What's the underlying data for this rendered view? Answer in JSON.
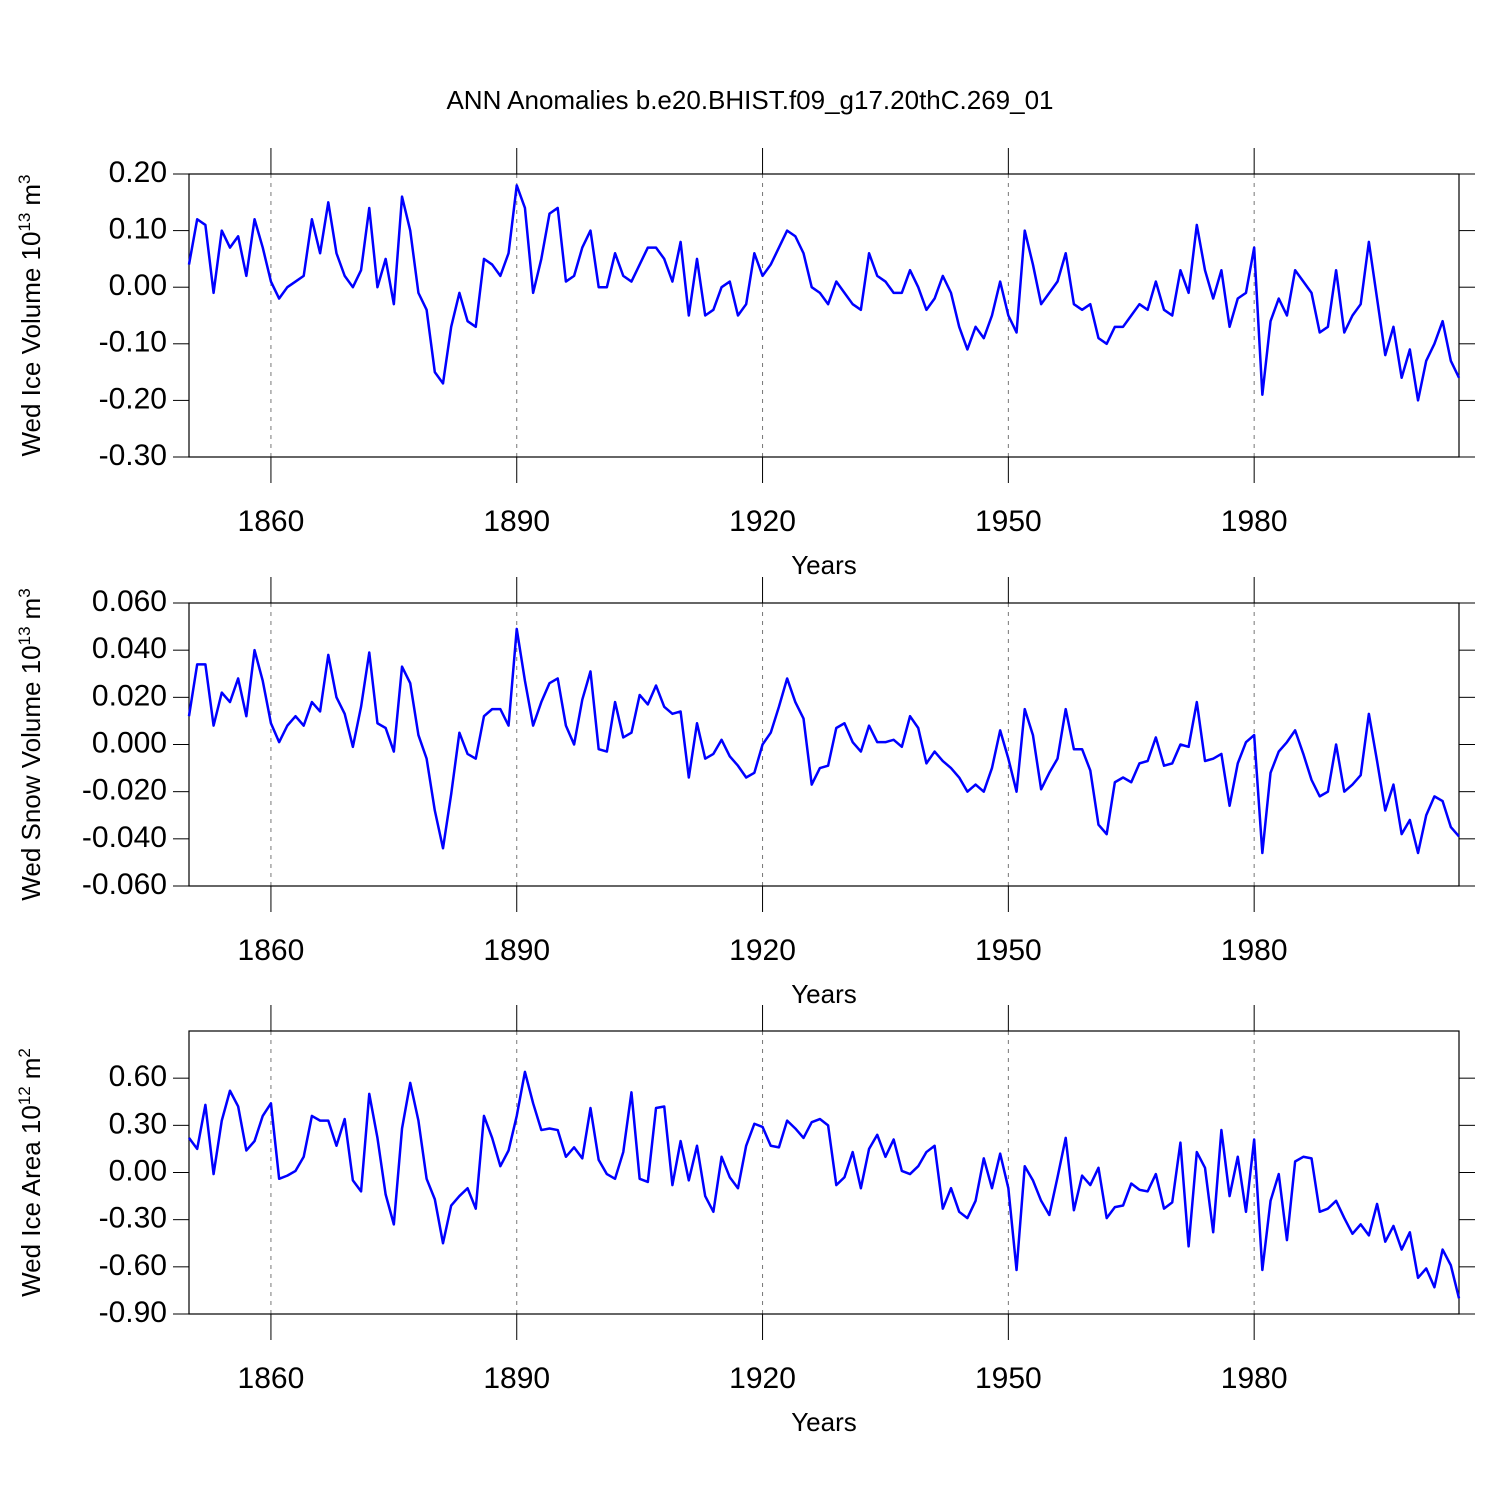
{
  "title": "ANN Anomalies b.e20.BHIST.f09_g17.20thC.269_01",
  "chart_data": [
    {
      "type": "line",
      "xlabel": "Years",
      "ylabel": {
        "text": "Wed Ice Volume 10",
        "exponent": "13",
        "unit": "m",
        "unit_exponent": "3"
      },
      "xlim": [
        1850,
        2005
      ],
      "xticks": [
        1860,
        1890,
        1920,
        1950,
        1980
      ],
      "grid": true,
      "color": "#0000ff",
      "ylim": [
        -0.3,
        0.2
      ],
      "yticks": [
        {
          "value": -0.3,
          "label": "-0.30"
        },
        {
          "value": -0.2,
          "label": "-0.20"
        },
        {
          "value": -0.1,
          "label": "-0.10"
        },
        {
          "value": 0,
          "label": "0.00"
        },
        {
          "value": 0.1,
          "label": "0.10"
        },
        {
          "value": 0.2,
          "label": "0.20"
        }
      ],
      "x": [
        1850,
        1851,
        1852,
        1853,
        1854,
        1855,
        1856,
        1857,
        1858,
        1859,
        1860,
        1861,
        1862,
        1863,
        1864,
        1865,
        1866,
        1867,
        1868,
        1869,
        1870,
        1871,
        1872,
        1873,
        1874,
        1875,
        1876,
        1877,
        1878,
        1879,
        1880,
        1881,
        1882,
        1883,
        1884,
        1885,
        1886,
        1887,
        1888,
        1889,
        1890,
        1891,
        1892,
        1893,
        1894,
        1895,
        1896,
        1897,
        1898,
        1899,
        1900,
        1901,
        1902,
        1903,
        1904,
        1905,
        1906,
        1907,
        1908,
        1909,
        1910,
        1911,
        1912,
        1913,
        1914,
        1915,
        1916,
        1917,
        1918,
        1919,
        1920,
        1921,
        1922,
        1923,
        1924,
        1925,
        1926,
        1927,
        1928,
        1929,
        1930,
        1931,
        1932,
        1933,
        1934,
        1935,
        1936,
        1937,
        1938,
        1939,
        1940,
        1941,
        1942,
        1943,
        1944,
        1945,
        1946,
        1947,
        1948,
        1949,
        1950,
        1951,
        1952,
        1953,
        1954,
        1955,
        1956,
        1957,
        1958,
        1959,
        1960,
        1961,
        1962,
        1963,
        1964,
        1965,
        1966,
        1967,
        1968,
        1969,
        1970,
        1971,
        1972,
        1973,
        1974,
        1975,
        1976,
        1977,
        1978,
        1979,
        1980,
        1981,
        1982,
        1983,
        1984,
        1985,
        1986,
        1987,
        1988,
        1989,
        1990,
        1991,
        1992,
        1993,
        1994,
        1995,
        1996,
        1997,
        1998,
        1999,
        2000,
        2001,
        2002,
        2003,
        2004,
        2005
      ],
      "values": [
        0.04,
        0.12,
        0.11,
        -0.01,
        0.1,
        0.07,
        0.09,
        0.02,
        0.12,
        0.07,
        0.01,
        -0.02,
        0.0,
        0.01,
        0.02,
        0.12,
        0.06,
        0.15,
        0.06,
        0.02,
        0.0,
        0.03,
        0.14,
        0.0,
        0.05,
        -0.03,
        0.16,
        0.1,
        -0.01,
        -0.04,
        -0.15,
        -0.17,
        -0.07,
        -0.01,
        -0.06,
        -0.07,
        0.05,
        0.04,
        0.02,
        0.06,
        0.18,
        0.14,
        -0.01,
        0.05,
        0.13,
        0.14,
        0.01,
        0.02,
        0.07,
        0.1,
        0.0,
        0.0,
        0.06,
        0.02,
        0.01,
        0.04,
        0.07,
        0.07,
        0.05,
        0.01,
        0.08,
        -0.05,
        0.05,
        -0.05,
        -0.04,
        0.0,
        0.01,
        -0.05,
        -0.03,
        0.06,
        0.02,
        0.04,
        0.07,
        0.1,
        0.09,
        0.06,
        0.0,
        -0.01,
        -0.03,
        0.01,
        -0.01,
        -0.03,
        -0.04,
        0.06,
        0.02,
        0.01,
        -0.01,
        -0.01,
        0.03,
        0.0,
        -0.04,
        -0.02,
        0.02,
        -0.01,
        -0.07,
        -0.11,
        -0.07,
        -0.09,
        -0.05,
        0.01,
        -0.05,
        -0.08,
        0.1,
        0.04,
        -0.03,
        -0.01,
        0.01,
        0.06,
        -0.03,
        -0.04,
        -0.03,
        -0.09,
        -0.1,
        -0.07,
        -0.07,
        -0.05,
        -0.03,
        -0.04,
        0.01,
        -0.04,
        -0.05,
        0.03,
        -0.01,
        0.11,
        0.03,
        -0.02,
        0.03,
        -0.07,
        -0.02,
        -0.01,
        0.07,
        -0.19,
        -0.06,
        -0.02,
        -0.05,
        0.03,
        0.01,
        -0.01,
        -0.08,
        -0.07,
        0.03,
        -0.08,
        -0.05,
        -0.03,
        0.08,
        -0.02,
        -0.12,
        -0.07,
        -0.16,
        -0.11,
        -0.2,
        -0.13,
        -0.1,
        -0.06,
        -0.13,
        -0.16
      ]
    },
    {
      "type": "line",
      "xlabel": "Years",
      "ylabel": {
        "text": "Wed Snow Volume 10",
        "exponent": "13",
        "unit": "m",
        "unit_exponent": "3"
      },
      "xlim": [
        1850,
        2005
      ],
      "xticks": [
        1860,
        1890,
        1920,
        1950,
        1980
      ],
      "grid": true,
      "color": "#0000ff",
      "ylim": [
        -0.06,
        0.06
      ],
      "yticks": [
        {
          "value": -0.06,
          "label": "-0.060"
        },
        {
          "value": -0.04,
          "label": "-0.040"
        },
        {
          "value": -0.02,
          "label": "-0.020"
        },
        {
          "value": 0,
          "label": "0.000"
        },
        {
          "value": 0.02,
          "label": "0.020"
        },
        {
          "value": 0.04,
          "label": "0.040"
        },
        {
          "value": 0.06,
          "label": "0.060"
        }
      ],
      "x": [
        1850,
        1851,
        1852,
        1853,
        1854,
        1855,
        1856,
        1857,
        1858,
        1859,
        1860,
        1861,
        1862,
        1863,
        1864,
        1865,
        1866,
        1867,
        1868,
        1869,
        1870,
        1871,
        1872,
        1873,
        1874,
        1875,
        1876,
        1877,
        1878,
        1879,
        1880,
        1881,
        1882,
        1883,
        1884,
        1885,
        1886,
        1887,
        1888,
        1889,
        1890,
        1891,
        1892,
        1893,
        1894,
        1895,
        1896,
        1897,
        1898,
        1899,
        1900,
        1901,
        1902,
        1903,
        1904,
        1905,
        1906,
        1907,
        1908,
        1909,
        1910,
        1911,
        1912,
        1913,
        1914,
        1915,
        1916,
        1917,
        1918,
        1919,
        1920,
        1921,
        1922,
        1923,
        1924,
        1925,
        1926,
        1927,
        1928,
        1929,
        1930,
        1931,
        1932,
        1933,
        1934,
        1935,
        1936,
        1937,
        1938,
        1939,
        1940,
        1941,
        1942,
        1943,
        1944,
        1945,
        1946,
        1947,
        1948,
        1949,
        1950,
        1951,
        1952,
        1953,
        1954,
        1955,
        1956,
        1957,
        1958,
        1959,
        1960,
        1961,
        1962,
        1963,
        1964,
        1965,
        1966,
        1967,
        1968,
        1969,
        1970,
        1971,
        1972,
        1973,
        1974,
        1975,
        1976,
        1977,
        1978,
        1979,
        1980,
        1981,
        1982,
        1983,
        1984,
        1985,
        1986,
        1987,
        1988,
        1989,
        1990,
        1991,
        1992,
        1993,
        1994,
        1995,
        1996,
        1997,
        1998,
        1999,
        2000,
        2001,
        2002,
        2003,
        2004,
        2005
      ],
      "values": [
        0.012,
        0.034,
        0.034,
        0.008,
        0.022,
        0.018,
        0.028,
        0.012,
        0.04,
        0.027,
        0.009,
        0.001,
        0.008,
        0.012,
        0.008,
        0.018,
        0.014,
        0.038,
        0.02,
        0.013,
        -0.001,
        0.016,
        0.039,
        0.009,
        0.007,
        -0.003,
        0.033,
        0.026,
        0.004,
        -0.006,
        -0.028,
        -0.044,
        -0.021,
        0.005,
        -0.004,
        -0.006,
        0.012,
        0.015,
        0.015,
        0.008,
        0.049,
        0.027,
        0.008,
        0.018,
        0.026,
        0.028,
        0.008,
        0.0,
        0.019,
        0.031,
        -0.002,
        -0.003,
        0.018,
        0.003,
        0.005,
        0.021,
        0.017,
        0.025,
        0.016,
        0.013,
        0.014,
        -0.014,
        0.009,
        -0.006,
        -0.004,
        0.002,
        -0.005,
        -0.009,
        -0.014,
        -0.012,
        0.0,
        0.005,
        0.016,
        0.028,
        0.018,
        0.011,
        -0.017,
        -0.01,
        -0.009,
        0.007,
        0.009,
        0.001,
        -0.003,
        0.008,
        0.001,
        0.001,
        0.002,
        -0.001,
        0.012,
        0.007,
        -0.008,
        -0.003,
        -0.007,
        -0.01,
        -0.014,
        -0.02,
        -0.017,
        -0.02,
        -0.01,
        0.006,
        -0.006,
        -0.02,
        0.015,
        0.004,
        -0.019,
        -0.012,
        -0.006,
        0.015,
        -0.002,
        -0.002,
        -0.011,
        -0.034,
        -0.038,
        -0.016,
        -0.014,
        -0.016,
        -0.008,
        -0.007,
        0.003,
        -0.009,
        -0.008,
        0.0,
        -0.001,
        0.018,
        -0.007,
        -0.006,
        -0.004,
        -0.026,
        -0.008,
        0.001,
        0.004,
        -0.046,
        -0.012,
        -0.003,
        0.001,
        0.006,
        -0.004,
        -0.015,
        -0.022,
        -0.02,
        0.0,
        -0.02,
        -0.017,
        -0.013,
        0.013,
        -0.007,
        -0.028,
        -0.017,
        -0.038,
        -0.032,
        -0.046,
        -0.03,
        -0.022,
        -0.024,
        -0.035,
        -0.039
      ]
    },
    {
      "type": "line",
      "xlabel": "Years",
      "ylabel": {
        "text": "Wed Ice Area 10",
        "exponent": "12",
        "unit": "m",
        "unit_exponent": "2"
      },
      "xlim": [
        1850,
        2005
      ],
      "xticks": [
        1860,
        1890,
        1920,
        1950,
        1980
      ],
      "grid": true,
      "color": "#0000ff",
      "ylim": [
        -0.9,
        0.9
      ],
      "yticks": [
        {
          "value": -0.9,
          "label": "-0.90"
        },
        {
          "value": -0.6,
          "label": "-0.60"
        },
        {
          "value": -0.3,
          "label": "-0.30"
        },
        {
          "value": 0,
          "label": "0.00"
        },
        {
          "value": 0.3,
          "label": "0.30"
        },
        {
          "value": 0.6,
          "label": "0.60"
        }
      ],
      "x": [
        1850,
        1851,
        1852,
        1853,
        1854,
        1855,
        1856,
        1857,
        1858,
        1859,
        1860,
        1861,
        1862,
        1863,
        1864,
        1865,
        1866,
        1867,
        1868,
        1869,
        1870,
        1871,
        1872,
        1873,
        1874,
        1875,
        1876,
        1877,
        1878,
        1879,
        1880,
        1881,
        1882,
        1883,
        1884,
        1885,
        1886,
        1887,
        1888,
        1889,
        1890,
        1891,
        1892,
        1893,
        1894,
        1895,
        1896,
        1897,
        1898,
        1899,
        1900,
        1901,
        1902,
        1903,
        1904,
        1905,
        1906,
        1907,
        1908,
        1909,
        1910,
        1911,
        1912,
        1913,
        1914,
        1915,
        1916,
        1917,
        1918,
        1919,
        1920,
        1921,
        1922,
        1923,
        1924,
        1925,
        1926,
        1927,
        1928,
        1929,
        1930,
        1931,
        1932,
        1933,
        1934,
        1935,
        1936,
        1937,
        1938,
        1939,
        1940,
        1941,
        1942,
        1943,
        1944,
        1945,
        1946,
        1947,
        1948,
        1949,
        1950,
        1951,
        1952,
        1953,
        1954,
        1955,
        1956,
        1957,
        1958,
        1959,
        1960,
        1961,
        1962,
        1963,
        1964,
        1965,
        1966,
        1967,
        1968,
        1969,
        1970,
        1971,
        1972,
        1973,
        1974,
        1975,
        1976,
        1977,
        1978,
        1979,
        1980,
        1981,
        1982,
        1983,
        1984,
        1985,
        1986,
        1987,
        1988,
        1989,
        1990,
        1991,
        1992,
        1993,
        1994,
        1995,
        1996,
        1997,
        1998,
        1999,
        2000,
        2001,
        2002,
        2003,
        2004,
        2005
      ],
      "values": [
        0.22,
        0.15,
        0.43,
        -0.01,
        0.33,
        0.52,
        0.42,
        0.14,
        0.2,
        0.36,
        0.44,
        -0.04,
        -0.02,
        0.01,
        0.1,
        0.36,
        0.33,
        0.33,
        0.17,
        0.34,
        -0.05,
        -0.12,
        0.5,
        0.22,
        -0.14,
        -0.33,
        0.28,
        0.57,
        0.33,
        -0.04,
        -0.17,
        -0.45,
        -0.21,
        -0.15,
        -0.1,
        -0.23,
        0.36,
        0.22,
        0.04,
        0.14,
        0.36,
        0.64,
        0.44,
        0.27,
        0.28,
        0.27,
        0.1,
        0.16,
        0.09,
        0.41,
        0.08,
        -0.01,
        -0.04,
        0.13,
        0.51,
        -0.04,
        -0.06,
        0.41,
        0.42,
        -0.08,
        0.2,
        -0.05,
        0.17,
        -0.15,
        -0.25,
        0.1,
        -0.03,
        -0.1,
        0.17,
        0.31,
        0.29,
        0.17,
        0.16,
        0.33,
        0.28,
        0.22,
        0.32,
        0.34,
        0.3,
        -0.08,
        -0.03,
        0.13,
        -0.1,
        0.15,
        0.24,
        0.1,
        0.21,
        0.01,
        -0.01,
        0.04,
        0.13,
        0.17,
        -0.23,
        -0.1,
        -0.25,
        -0.29,
        -0.18,
        0.09,
        -0.1,
        0.12,
        -0.1,
        -0.62,
        0.04,
        -0.05,
        -0.18,
        -0.27,
        -0.03,
        0.22,
        -0.24,
        -0.02,
        -0.08,
        0.03,
        -0.29,
        -0.22,
        -0.21,
        -0.07,
        -0.11,
        -0.12,
        -0.01,
        -0.23,
        -0.19,
        0.19,
        -0.47,
        0.13,
        0.03,
        -0.38,
        0.27,
        -0.15,
        0.1,
        -0.25,
        0.21,
        -0.62,
        -0.18,
        -0.01,
        -0.43,
        0.07,
        0.1,
        0.09,
        -0.25,
        -0.23,
        -0.18,
        -0.29,
        -0.39,
        -0.33,
        -0.4,
        -0.2,
        -0.44,
        -0.34,
        -0.49,
        -0.38,
        -0.67,
        -0.61,
        -0.73,
        -0.49,
        -0.59,
        -0.8
      ]
    }
  ]
}
